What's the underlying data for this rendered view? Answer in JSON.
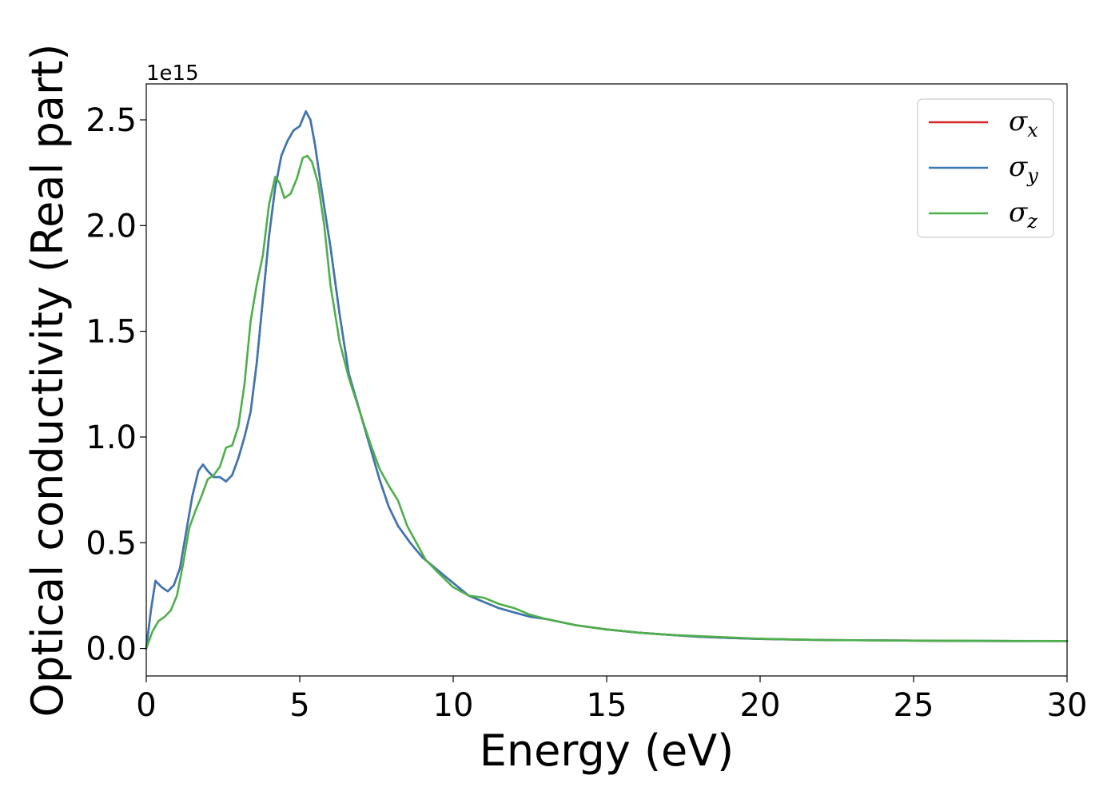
{
  "chart_data": {
    "type": "line",
    "xlabel": "Energy (eV)",
    "ylabel": "Optical conductivity (Real part)",
    "y_offset_label": "1e15",
    "xlim": [
      0,
      30
    ],
    "ylim": [
      -0.13,
      2.67
    ],
    "y_scale": 1000000000000000.0,
    "x_ticks": [
      0,
      5,
      10,
      15,
      20,
      25,
      30
    ],
    "x_tick_labels": [
      "0",
      "5",
      "10",
      "15",
      "20",
      "25",
      "30"
    ],
    "y_ticks": [
      0.0,
      0.5,
      1.0,
      1.5,
      2.0,
      2.5
    ],
    "y_tick_labels": [
      "0.0",
      "0.5",
      "1.0",
      "1.5",
      "2.0",
      "2.5"
    ],
    "grid": false,
    "legend_position": "top-right",
    "series": [
      {
        "name": "σx",
        "symbol": "σ",
        "subscript": "x",
        "color": "#d62728",
        "points": [
          [
            0,
            0
          ],
          [
            0.15,
            0.18
          ],
          [
            0.3,
            0.32
          ],
          [
            0.5,
            0.29
          ],
          [
            0.7,
            0.27
          ],
          [
            0.9,
            0.3
          ],
          [
            1.1,
            0.38
          ],
          [
            1.3,
            0.55
          ],
          [
            1.5,
            0.72
          ],
          [
            1.7,
            0.84
          ],
          [
            1.85,
            0.87
          ],
          [
            2.0,
            0.84
          ],
          [
            2.2,
            0.81
          ],
          [
            2.4,
            0.81
          ],
          [
            2.6,
            0.79
          ],
          [
            2.8,
            0.82
          ],
          [
            3.0,
            0.9
          ],
          [
            3.2,
            1.0
          ],
          [
            3.4,
            1.12
          ],
          [
            3.6,
            1.35
          ],
          [
            3.8,
            1.65
          ],
          [
            4.0,
            1.95
          ],
          [
            4.2,
            2.18
          ],
          [
            4.4,
            2.33
          ],
          [
            4.6,
            2.4
          ],
          [
            4.8,
            2.45
          ],
          [
            5.0,
            2.47
          ],
          [
            5.2,
            2.54
          ],
          [
            5.35,
            2.5
          ],
          [
            5.5,
            2.38
          ],
          [
            5.7,
            2.18
          ],
          [
            6.0,
            1.9
          ],
          [
            6.3,
            1.58
          ],
          [
            6.6,
            1.3
          ],
          [
            7.0,
            1.1
          ],
          [
            7.3,
            0.95
          ],
          [
            7.6,
            0.8
          ],
          [
            7.9,
            0.67
          ],
          [
            8.2,
            0.58
          ],
          [
            8.6,
            0.5
          ],
          [
            9.0,
            0.43
          ],
          [
            9.5,
            0.37
          ],
          [
            10.0,
            0.31
          ],
          [
            10.5,
            0.25
          ],
          [
            11.0,
            0.22
          ],
          [
            11.5,
            0.19
          ],
          [
            12.0,
            0.17
          ],
          [
            12.5,
            0.15
          ],
          [
            13.0,
            0.14
          ],
          [
            14.0,
            0.11
          ],
          [
            15.0,
            0.09
          ],
          [
            16.0,
            0.075
          ],
          [
            17.0,
            0.065
          ],
          [
            18.0,
            0.055
          ],
          [
            19.0,
            0.05
          ],
          [
            20.0,
            0.045
          ],
          [
            22.0,
            0.04
          ],
          [
            24.0,
            0.038
          ],
          [
            26.0,
            0.036
          ],
          [
            28.0,
            0.035
          ],
          [
            30.0,
            0.035
          ]
        ]
      },
      {
        "name": "σy",
        "symbol": "σ",
        "subscript": "y",
        "color": "#3a78b5",
        "points": [
          [
            0,
            0
          ],
          [
            0.15,
            0.18
          ],
          [
            0.3,
            0.32
          ],
          [
            0.5,
            0.29
          ],
          [
            0.7,
            0.27
          ],
          [
            0.9,
            0.3
          ],
          [
            1.1,
            0.38
          ],
          [
            1.3,
            0.55
          ],
          [
            1.5,
            0.72
          ],
          [
            1.7,
            0.84
          ],
          [
            1.85,
            0.87
          ],
          [
            2.0,
            0.84
          ],
          [
            2.2,
            0.81
          ],
          [
            2.4,
            0.81
          ],
          [
            2.6,
            0.79
          ],
          [
            2.8,
            0.82
          ],
          [
            3.0,
            0.9
          ],
          [
            3.2,
            1.0
          ],
          [
            3.4,
            1.12
          ],
          [
            3.6,
            1.35
          ],
          [
            3.8,
            1.65
          ],
          [
            4.0,
            1.95
          ],
          [
            4.2,
            2.18
          ],
          [
            4.4,
            2.33
          ],
          [
            4.6,
            2.4
          ],
          [
            4.8,
            2.45
          ],
          [
            5.0,
            2.47
          ],
          [
            5.2,
            2.54
          ],
          [
            5.35,
            2.5
          ],
          [
            5.5,
            2.38
          ],
          [
            5.7,
            2.18
          ],
          [
            6.0,
            1.9
          ],
          [
            6.3,
            1.58
          ],
          [
            6.6,
            1.3
          ],
          [
            7.0,
            1.1
          ],
          [
            7.3,
            0.95
          ],
          [
            7.6,
            0.8
          ],
          [
            7.9,
            0.67
          ],
          [
            8.2,
            0.58
          ],
          [
            8.6,
            0.5
          ],
          [
            9.0,
            0.43
          ],
          [
            9.5,
            0.37
          ],
          [
            10.0,
            0.31
          ],
          [
            10.5,
            0.25
          ],
          [
            11.0,
            0.22
          ],
          [
            11.5,
            0.19
          ],
          [
            12.0,
            0.17
          ],
          [
            12.5,
            0.15
          ],
          [
            13.0,
            0.14
          ],
          [
            14.0,
            0.11
          ],
          [
            15.0,
            0.09
          ],
          [
            16.0,
            0.075
          ],
          [
            17.0,
            0.065
          ],
          [
            18.0,
            0.055
          ],
          [
            19.0,
            0.05
          ],
          [
            20.0,
            0.045
          ],
          [
            22.0,
            0.04
          ],
          [
            24.0,
            0.038
          ],
          [
            26.0,
            0.036
          ],
          [
            28.0,
            0.035
          ],
          [
            30.0,
            0.035
          ]
        ]
      },
      {
        "name": "σz",
        "symbol": "σ",
        "subscript": "z",
        "color": "#4daf4a",
        "points": [
          [
            0,
            0
          ],
          [
            0.2,
            0.08
          ],
          [
            0.4,
            0.13
          ],
          [
            0.6,
            0.15
          ],
          [
            0.8,
            0.18
          ],
          [
            1.0,
            0.25
          ],
          [
            1.2,
            0.4
          ],
          [
            1.4,
            0.57
          ],
          [
            1.6,
            0.65
          ],
          [
            1.8,
            0.72
          ],
          [
            2.0,
            0.8
          ],
          [
            2.2,
            0.82
          ],
          [
            2.4,
            0.86
          ],
          [
            2.6,
            0.95
          ],
          [
            2.8,
            0.96
          ],
          [
            3.0,
            1.05
          ],
          [
            3.2,
            1.25
          ],
          [
            3.4,
            1.55
          ],
          [
            3.6,
            1.72
          ],
          [
            3.8,
            1.86
          ],
          [
            4.0,
            2.1
          ],
          [
            4.2,
            2.23
          ],
          [
            4.35,
            2.2
          ],
          [
            4.5,
            2.13
          ],
          [
            4.7,
            2.15
          ],
          [
            4.9,
            2.22
          ],
          [
            5.1,
            2.32
          ],
          [
            5.25,
            2.33
          ],
          [
            5.4,
            2.3
          ],
          [
            5.6,
            2.2
          ],
          [
            5.8,
            2.0
          ],
          [
            6.0,
            1.72
          ],
          [
            6.3,
            1.45
          ],
          [
            6.6,
            1.28
          ],
          [
            7.0,
            1.1
          ],
          [
            7.3,
            0.97
          ],
          [
            7.6,
            0.85
          ],
          [
            7.9,
            0.77
          ],
          [
            8.2,
            0.7
          ],
          [
            8.5,
            0.58
          ],
          [
            8.8,
            0.5
          ],
          [
            9.1,
            0.42
          ],
          [
            9.5,
            0.36
          ],
          [
            10.0,
            0.29
          ],
          [
            10.5,
            0.25
          ],
          [
            11.0,
            0.24
          ],
          [
            11.5,
            0.21
          ],
          [
            12.0,
            0.19
          ],
          [
            12.5,
            0.16
          ],
          [
            13.0,
            0.14
          ],
          [
            14.0,
            0.11
          ],
          [
            15.0,
            0.09
          ],
          [
            16.0,
            0.075
          ],
          [
            17.0,
            0.065
          ],
          [
            18.0,
            0.058
          ],
          [
            19.0,
            0.052
          ],
          [
            20.0,
            0.046
          ],
          [
            22.0,
            0.04
          ],
          [
            24.0,
            0.038
          ],
          [
            26.0,
            0.037
          ],
          [
            28.0,
            0.036
          ],
          [
            30.0,
            0.035
          ]
        ]
      }
    ]
  }
}
